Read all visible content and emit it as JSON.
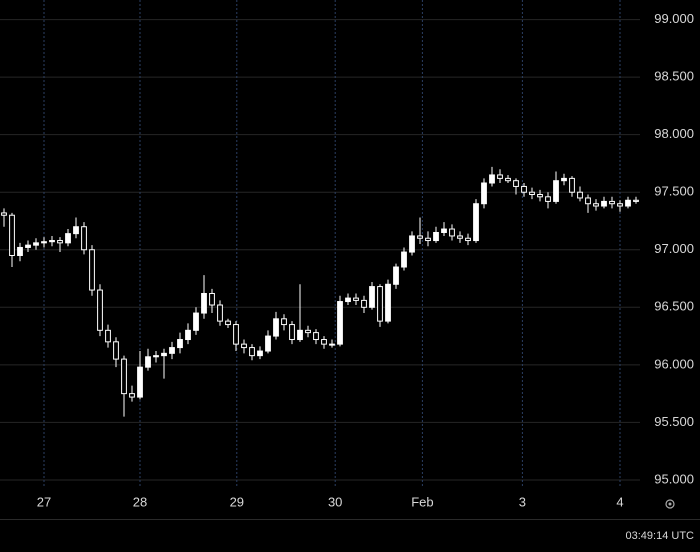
{
  "chart_data": {
    "type": "candlestick",
    "open": [
      97.32,
      97.3,
      96.95,
      97.02,
      97.04,
      97.06,
      97.07,
      97.08,
      97.06,
      97.14,
      97.2,
      97.0,
      96.65,
      96.3,
      96.2,
      96.05,
      95.75,
      95.72,
      95.98,
      96.07,
      96.08,
      96.1,
      96.15,
      96.22,
      96.3,
      96.45,
      96.62,
      96.52,
      96.38,
      96.35,
      96.18,
      96.15,
      96.08,
      96.12,
      96.25,
      96.4,
      96.35,
      96.22,
      96.3,
      96.28,
      96.22,
      96.18,
      96.18,
      96.55,
      96.58,
      96.56,
      96.5,
      96.68,
      96.38,
      96.7,
      96.85,
      96.98,
      97.12,
      97.1,
      97.08,
      97.15,
      97.18,
      97.12,
      97.1,
      97.08,
      97.4,
      97.58,
      97.65,
      97.62,
      97.6,
      97.55,
      97.5,
      97.48,
      97.46,
      97.42,
      97.6,
      97.62,
      97.5,
      97.45,
      97.4,
      97.38,
      97.42,
      97.4,
      97.38,
      97.43
    ],
    "high": [
      97.36,
      97.32,
      97.06,
      97.08,
      97.1,
      97.11,
      97.12,
      97.11,
      97.18,
      97.28,
      97.24,
      97.04,
      96.7,
      96.35,
      96.24,
      96.08,
      95.82,
      96.12,
      96.14,
      96.12,
      96.14,
      96.2,
      96.28,
      96.36,
      96.5,
      96.78,
      96.66,
      96.56,
      96.4,
      96.38,
      96.22,
      96.18,
      96.16,
      96.3,
      96.46,
      96.44,
      96.38,
      96.7,
      96.34,
      96.31,
      96.25,
      96.22,
      96.6,
      96.62,
      96.62,
      96.6,
      96.72,
      96.7,
      96.74,
      96.88,
      97.02,
      97.16,
      97.28,
      97.16,
      97.2,
      97.24,
      97.22,
      97.16,
      97.14,
      97.44,
      97.62,
      97.72,
      97.7,
      97.65,
      97.62,
      97.58,
      97.54,
      97.52,
      97.5,
      97.68,
      97.66,
      97.64,
      97.55,
      97.48,
      97.44,
      97.46,
      97.46,
      97.43,
      97.46,
      97.46
    ],
    "low": [
      97.2,
      96.85,
      96.9,
      96.98,
      97.0,
      97.02,
      97.03,
      96.98,
      97.03,
      97.1,
      96.96,
      96.6,
      96.25,
      96.15,
      95.98,
      95.55,
      95.68,
      95.7,
      95.95,
      96.02,
      95.88,
      96.05,
      96.1,
      96.18,
      96.26,
      96.4,
      96.45,
      96.34,
      96.32,
      96.12,
      96.1,
      96.04,
      96.05,
      96.1,
      96.22,
      96.3,
      96.18,
      96.2,
      96.24,
      96.18,
      96.14,
      96.15,
      96.16,
      96.52,
      96.52,
      96.45,
      96.48,
      96.33,
      96.36,
      96.66,
      96.82,
      96.95,
      97.05,
      97.03,
      97.06,
      97.12,
      97.08,
      97.06,
      97.04,
      97.06,
      97.36,
      97.55,
      97.58,
      97.58,
      97.48,
      97.46,
      97.44,
      97.42,
      97.36,
      97.4,
      97.56,
      97.46,
      97.42,
      97.32,
      97.34,
      97.36,
      97.36,
      97.33,
      97.36,
      97.4
    ],
    "close": [
      97.3,
      96.95,
      97.02,
      97.04,
      97.06,
      97.07,
      97.08,
      97.06,
      97.14,
      97.2,
      97.0,
      96.65,
      96.3,
      96.2,
      96.05,
      95.75,
      95.72,
      95.98,
      96.07,
      96.08,
      96.1,
      96.15,
      96.22,
      96.3,
      96.45,
      96.62,
      96.52,
      96.38,
      96.35,
      96.18,
      96.15,
      96.08,
      96.12,
      96.25,
      96.4,
      96.35,
      96.22,
      96.3,
      96.28,
      96.22,
      96.18,
      96.18,
      96.55,
      96.58,
      96.56,
      96.5,
      96.68,
      96.38,
      96.7,
      96.85,
      96.98,
      97.12,
      97.1,
      97.08,
      97.15,
      97.18,
      97.12,
      97.1,
      97.08,
      97.4,
      97.58,
      97.65,
      97.62,
      97.6,
      97.55,
      97.5,
      97.48,
      97.46,
      97.42,
      97.6,
      97.62,
      97.5,
      97.45,
      97.4,
      97.38,
      97.42,
      97.4,
      97.38,
      97.43,
      97.42
    ],
    "up_color": "#ffffff",
    "down_color": "#000000",
    "wick_color": "#ffffff",
    "xlim": [
      0,
      80
    ],
    "xticks": [
      {
        "value": 5.5,
        "label": "27"
      },
      {
        "value": 17.5,
        "label": "28"
      },
      {
        "value": 29.6,
        "label": "29"
      },
      {
        "value": 41.9,
        "label": "30"
      },
      {
        "value": 52.8,
        "label": "Feb"
      },
      {
        "value": 65.3,
        "label": "3"
      },
      {
        "value": 77.5,
        "label": "4"
      }
    ],
    "ylim": [
      94.93,
      99.17
    ],
    "yticks": [
      {
        "value": 95,
        "label": "95.000"
      },
      {
        "value": 95.5,
        "label": "95.500"
      },
      {
        "value": 96,
        "label": "96.000"
      },
      {
        "value": 96.5,
        "label": "96.500"
      },
      {
        "value": 97,
        "label": "97.000"
      },
      {
        "value": 97.5,
        "label": "97.500"
      },
      {
        "value": 98,
        "label": "98.000"
      },
      {
        "value": 98.5,
        "label": "98.500"
      },
      {
        "value": 99,
        "label": "99.000"
      }
    ],
    "grid": true,
    "clock": "03:49:14 UTC"
  }
}
